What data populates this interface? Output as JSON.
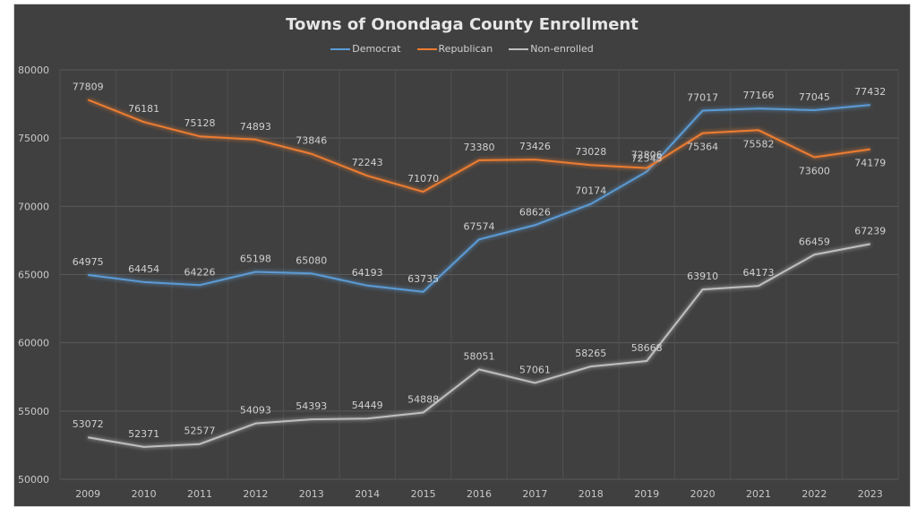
{
  "chart_data": {
    "type": "line",
    "title": "Towns of Onondaga County Enrollment",
    "xlabel": "",
    "ylabel": "",
    "ylim": [
      50000,
      80000
    ],
    "yticks": [
      50000,
      55000,
      60000,
      65000,
      70000,
      75000,
      80000
    ],
    "grid": true,
    "legend_position": "top-center",
    "categories": [
      "2009",
      "2010",
      "2011",
      "2012",
      "2013",
      "2014",
      "2015",
      "2016",
      "2017",
      "2018",
      "2019",
      "2020",
      "2021",
      "2022",
      "2023"
    ],
    "series": [
      {
        "name": "Democrat",
        "color": "#5b9bd5",
        "values": [
          64975,
          64454,
          64226,
          65198,
          65080,
          64193,
          63735,
          67574,
          68626,
          70174,
          72545,
          77017,
          77166,
          77045,
          77432
        ],
        "label_side": [
          "above",
          "above",
          "above",
          "above",
          "above",
          "above",
          "above",
          "above",
          "above",
          "above",
          "above",
          "above",
          "above",
          "above",
          "above"
        ]
      },
      {
        "name": "Republican",
        "color": "#ed7d31",
        "values": [
          77809,
          76181,
          75128,
          74893,
          73846,
          72243,
          71070,
          73380,
          73426,
          73028,
          72806,
          75364,
          75582,
          73600,
          74179
        ],
        "label_side": [
          "above",
          "above",
          "above",
          "above",
          "above",
          "above",
          "above",
          "above",
          "above",
          "above",
          "above",
          "below",
          "below",
          "below",
          "below"
        ]
      },
      {
        "name": "Non-enrolled",
        "color": "#bfbfbf",
        "values": [
          53072,
          52371,
          52577,
          54093,
          54393,
          54449,
          54888,
          58051,
          57061,
          58265,
          58668,
          63910,
          64173,
          66459,
          67239
        ],
        "label_side": [
          "above",
          "above",
          "above",
          "above",
          "above",
          "above",
          "above",
          "above",
          "above",
          "above",
          "above",
          "above",
          "above",
          "above",
          "above"
        ]
      }
    ]
  }
}
